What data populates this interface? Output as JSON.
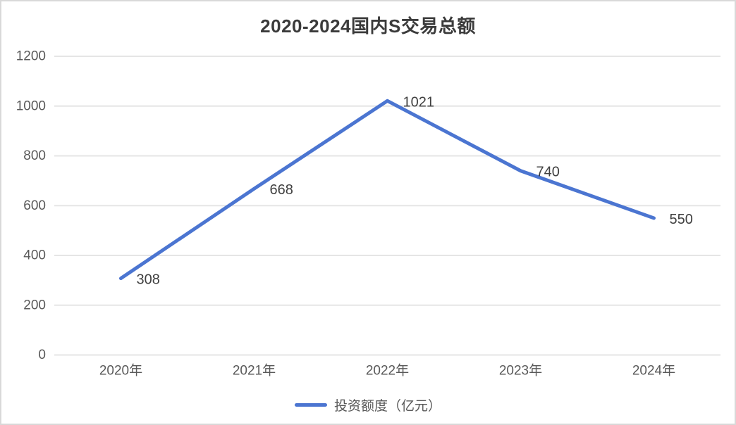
{
  "window": {
    "background": "#ffffff",
    "border_color": "#d9d9d9"
  },
  "chart_data": {
    "type": "line",
    "title": "2020-2024国内S交易总额",
    "categories": [
      "2020年",
      "2021年",
      "2022年",
      "2023年",
      "2024年"
    ],
    "series": [
      {
        "name": "投资额度（亿元）",
        "values": [
          308,
          668,
          1021,
          740,
          550
        ],
        "color": "#4b75d1"
      }
    ],
    "data_labels": [
      "308",
      "668",
      "1021",
      "740",
      "550"
    ],
    "yticks": [
      0,
      200,
      400,
      600,
      800,
      1000,
      1200
    ],
    "ylim": [
      0,
      1200
    ],
    "xlabel": "",
    "ylabel": "",
    "grid": true,
    "legend_position": "bottom"
  },
  "colors": {
    "title": "#3b3b3b",
    "axis_label": "#595959",
    "data_label": "#404040",
    "gridline": "#e5e5e5",
    "line": "#4b75d1"
  }
}
